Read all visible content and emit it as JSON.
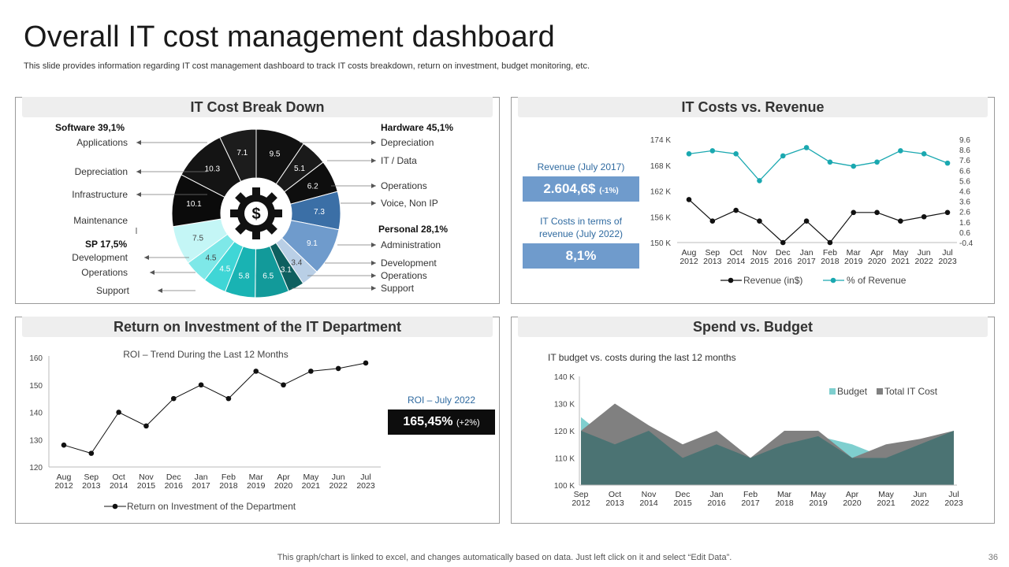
{
  "header": {
    "title": "Overall IT cost management dashboard",
    "subtitle": "This slide provides information regarding IT cost management dashboard to track IT costs breakdown, return on investment, budget monitoring, etc."
  },
  "footer": {
    "note": "This graph/chart is linked to excel,  and changes automatically based on data. Just left click on it and select “Edit Data”.",
    "page": "36"
  },
  "panels": {
    "breakdown": {
      "title": "IT Cost Break Down"
    },
    "revenue": {
      "title": "IT Costs vs. Revenue",
      "kpi1_label": "Revenue  (July 2017)",
      "kpi1_value": "2.604,6$",
      "kpi1_change": "(-1%)",
      "kpi2_label": "IT Costs in terms of revenue  (July 2022)",
      "kpi2_value": "8,1%"
    },
    "roi": {
      "title": "Return on Investment of the IT Department",
      "kpi_label": "ROI – July 2022",
      "kpi_value": "165,45%",
      "kpi_change": "(+2%)"
    },
    "budget": {
      "title": "Spend vs. Budget"
    }
  },
  "colors": {
    "black": "#111111",
    "dark": "#2b2b2b",
    "navy": "#3b6fa6",
    "blue": "#5f8fc4",
    "lightblue": "#a9c3e0",
    "teal": "#16a5a5",
    "teal_dark": "#0e7f7f",
    "teal_light": "#7ee8e8",
    "cyan": "#c7f5f5",
    "budget": "#7fcfcf",
    "total": "#808080",
    "overlap": "#4b7373",
    "revenue_line": "#111111",
    "pct_line": "#1aa8b0"
  },
  "chart_data": [
    {
      "type": "pie",
      "title": "IT Cost Break Down",
      "slices": [
        {
          "label": "9.5",
          "value": 9.5,
          "color": "#111111"
        },
        {
          "label": "5.1",
          "value": 5.1,
          "color": "#1a1a1a"
        },
        {
          "label": "6.2",
          "value": 6.2,
          "color": "#0e0e0e"
        },
        {
          "label": "7.3",
          "value": 7.3,
          "color": "#3b6fa6"
        },
        {
          "label": "9.1",
          "value": 9.1,
          "color": "#6f9bcc"
        },
        {
          "label": "3.4",
          "value": 3.4,
          "color": "#b9cfe6"
        },
        {
          "label": "3.1",
          "value": 3.1,
          "color": "#0e5f5f"
        },
        {
          "label": "6.5",
          "value": 6.5,
          "color": "#129a9a"
        },
        {
          "label": "5.8",
          "value": 5.8,
          "color": "#19b3b3"
        },
        {
          "label": "4.5",
          "value": 4.5,
          "color": "#3fd6d6"
        },
        {
          "label": "4.5",
          "value": 4.5,
          "color": "#7ee8e8"
        },
        {
          "label": "7.5",
          "value": 7.5,
          "color": "#c4f6f6"
        },
        {
          "label": "10.1",
          "value": 10.1,
          "color": "#0b0b0b"
        },
        {
          "label": "10.3",
          "value": 10.3,
          "color": "#141414"
        },
        {
          "label": "7.1",
          "value": 7.1,
          "color": "#1c1c1c"
        }
      ],
      "groups": {
        "software": "Software 39,1%",
        "hardware": "Hardware 45,1%",
        "sp": "SP 17,5%",
        "personal": "Personal 28,1%"
      },
      "left_labels": [
        "Applications",
        "Depreciation",
        "Infrastructure",
        "Maintenance",
        "Development",
        "Operations",
        "Support"
      ],
      "right_labels": [
        "Depreciation",
        "IT / Data",
        "Operations",
        "Voice, Non IP",
        "Administration",
        "Development",
        "Operations",
        "Support"
      ]
    },
    {
      "type": "line",
      "title": "IT Costs vs. Revenue",
      "categories": [
        "Aug 2012",
        "Sep 2013",
        "Oct 2014",
        "Nov 2015",
        "Dec 2016",
        "Jan 2017",
        "Feb 2018",
        "Mar 2019",
        "Apr 2020",
        "May 2021",
        "Jun 2022",
        "Jul 2023"
      ],
      "y_ticks": [
        "174 K",
        "168 K",
        "162 K",
        "156 K",
        "150 K"
      ],
      "y2_ticks": [
        "9.6",
        "8.6",
        "7.6",
        "6.6",
        "5.6",
        "4.6",
        "3.6",
        "2.6",
        "1.6",
        "0.6",
        "-0.4"
      ],
      "ylim": [
        150,
        174
      ],
      "y2lim": [
        -0.4,
        9.6
      ],
      "series": [
        {
          "name": "Revenue (in$)",
          "values": [
            160,
            155,
            157.5,
            155,
            150,
            155,
            150,
            157,
            157,
            155,
            156,
            157
          ]
        },
        {
          "name": "% of Revenue",
          "axis": "right",
          "values": [
            8.2,
            8.5,
            8.2,
            5.6,
            8.0,
            8.8,
            7.4,
            7.0,
            7.4,
            8.5,
            8.2,
            7.3
          ]
        }
      ]
    },
    {
      "type": "line",
      "title": "ROI – Trend During the Last 12 Months",
      "categories": [
        "Aug 2012",
        "Sep 2013",
        "Oct 2014",
        "Nov 2015",
        "Dec 2016",
        "Jan 2017",
        "Feb 2018",
        "Mar 2019",
        "Apr 2020",
        "May 2021",
        "Jun 2022",
        "Jul 2023"
      ],
      "y_ticks": [
        "160",
        "150",
        "140",
        "130",
        "120"
      ],
      "ylim": [
        120,
        160
      ],
      "series": [
        {
          "name": "Return on Investment of the Department",
          "values": [
            128,
            125,
            140,
            135,
            145,
            150,
            145,
            155,
            150,
            155,
            156,
            158
          ]
        }
      ]
    },
    {
      "type": "area",
      "title": "IT budget vs. costs during the last 12 months",
      "categories": [
        "Sep 2012",
        "Oct 2013",
        "Nov 2014",
        "Dec 2015",
        "Jan 2016",
        "Feb 2017",
        "Mar 2018",
        "May 2019",
        "Apr 2020",
        "May 2021",
        "Jun 2022",
        "Jul 2023"
      ],
      "y_ticks": [
        "140 K",
        "130 K",
        "120 K",
        "110 K",
        "100 K"
      ],
      "ylim": [
        100,
        140
      ],
      "series": [
        {
          "name": "Budget",
          "values": [
            125,
            115,
            120,
            110,
            115,
            110,
            115,
            118,
            115,
            110,
            115,
            120
          ]
        },
        {
          "name": "Total IT Cost",
          "values": [
            120,
            130,
            122,
            115,
            120,
            110,
            120,
            120,
            110,
            115,
            117,
            120
          ]
        }
      ]
    }
  ]
}
